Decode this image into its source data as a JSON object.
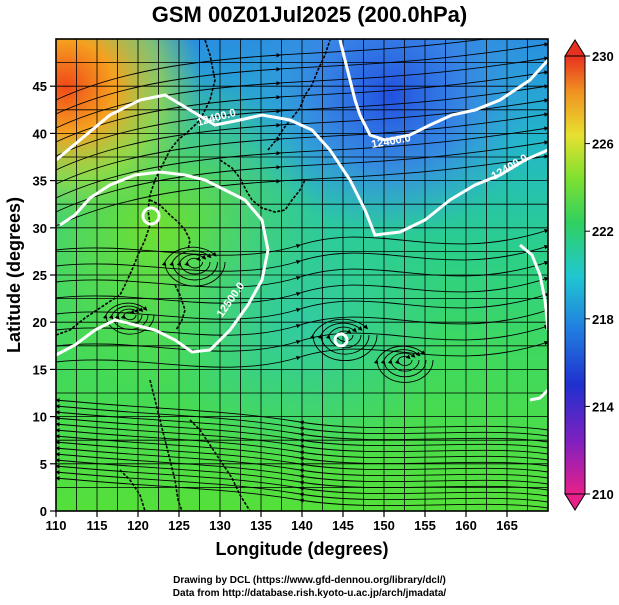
{
  "title": "GSM 00Z01Jul2025 (200.0hPa)",
  "x_axis": {
    "label": "Longitude (degrees)",
    "ticks": [
      "110",
      "115",
      "120",
      "125",
      "130",
      "135",
      "140",
      "145",
      "150",
      "155",
      "160",
      "165"
    ]
  },
  "y_axis": {
    "label": "Latitude  (degrees)",
    "ticks": [
      "0",
      "5",
      "10",
      "15",
      "20",
      "25",
      "30",
      "35",
      "40",
      "45"
    ]
  },
  "colorbar": {
    "labels": [
      "210",
      "214",
      "218",
      "222",
      "226",
      "230"
    ]
  },
  "contours": [
    {
      "label": "12400.0"
    },
    {
      "label": "12400.0"
    },
    {
      "label": "12400.0"
    },
    {
      "label": "12500.0"
    }
  ],
  "credits": {
    "line1": "Drawing by DCL (https://www.gfd-dennou.org/library/dcl/)",
    "line2": "Data from http://database.rish.kyoto-u.ac.jp/arch/jmadata/"
  },
  "chart_data": {
    "type": "map",
    "title": "GSM 00Z01Jul2025 (200.0hPa)",
    "xlabel": "Longitude (degrees)",
    "ylabel": "Latitude  (degrees)",
    "xlim": [
      110,
      170
    ],
    "ylim": [
      0,
      50
    ],
    "colorbar_range": [
      210,
      230
    ],
    "field": "temperature (K), shaded",
    "contour_field": "geopotential height (m)",
    "contour_levels": [
      12400.0,
      12500.0
    ],
    "overlay": "streamlines"
  }
}
